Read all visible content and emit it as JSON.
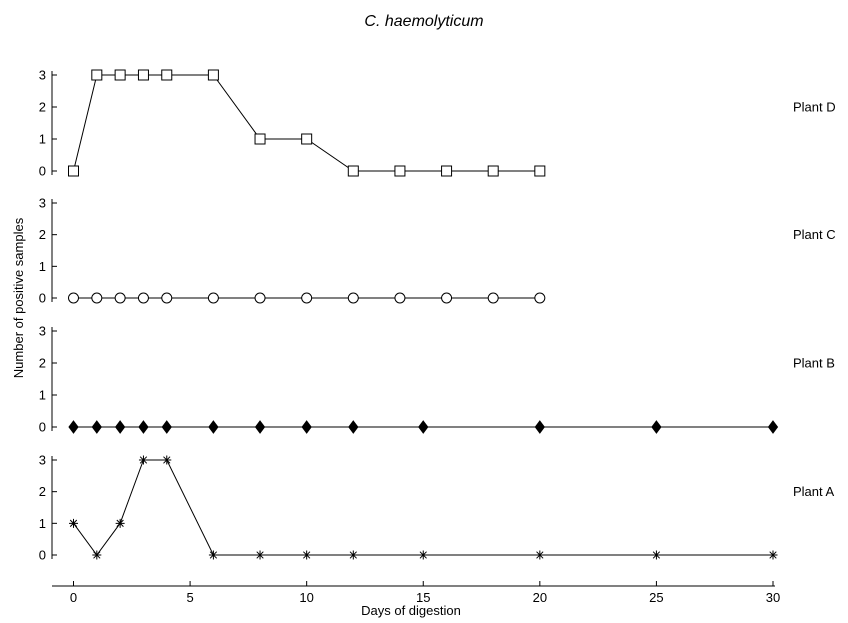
{
  "chart_data": {
    "type": "line",
    "title": "C. haemolyticum",
    "xlabel": "Days of digestion",
    "ylabel": "Number of positive samples",
    "xlim": [
      -1,
      30
    ],
    "ylim": [
      0,
      3
    ],
    "x_ticks": [
      0,
      5,
      10,
      15,
      20,
      25,
      30
    ],
    "y_ticks": [
      0,
      1,
      2,
      3
    ],
    "grid": false,
    "series": [
      {
        "name": "Plant D",
        "marker": "square-open",
        "x": [
          0,
          1,
          2,
          3,
          4,
          6,
          8,
          10,
          12,
          14,
          16,
          18,
          20
        ],
        "y": [
          0,
          3,
          3,
          3,
          3,
          3,
          1,
          1,
          0,
          0,
          0,
          0,
          0
        ]
      },
      {
        "name": "Plant C",
        "marker": "circle-open",
        "x": [
          0,
          1,
          2,
          3,
          4,
          6,
          8,
          10,
          12,
          14,
          16,
          18,
          20
        ],
        "y": [
          0,
          0,
          0,
          0,
          0,
          0,
          0,
          0,
          0,
          0,
          0,
          0,
          0
        ]
      },
      {
        "name": "Plant B",
        "marker": "diamond-filled",
        "x": [
          0,
          1,
          2,
          3,
          4,
          6,
          8,
          10,
          12,
          15,
          20,
          25,
          30
        ],
        "y": [
          0,
          0,
          0,
          0,
          0,
          0,
          0,
          0,
          0,
          0,
          0,
          0,
          0
        ]
      },
      {
        "name": "Plant A",
        "marker": "asterisk",
        "x": [
          0,
          1,
          2,
          3,
          4,
          6,
          8,
          10,
          12,
          15,
          20,
          25,
          30
        ],
        "y": [
          1,
          0,
          1,
          3,
          3,
          0,
          0,
          0,
          0,
          0,
          0,
          0,
          0
        ]
      }
    ]
  }
}
